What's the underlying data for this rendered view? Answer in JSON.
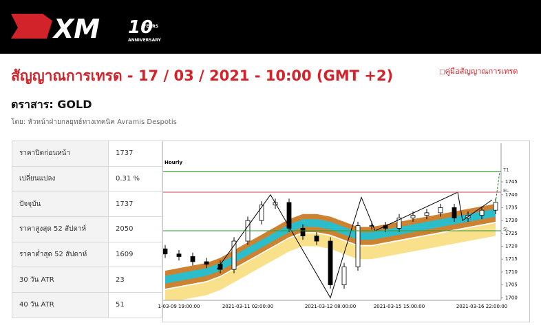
{
  "header": {
    "logo": "XM",
    "badge_number": "10",
    "badge_word": "YEARS",
    "badge_sub": "ANNIVERSARY"
  },
  "page": {
    "title": "สัญญาณการเทรด - 17 / 03 / 2021 - 10:00 (GMT +2)",
    "guide_link": "คู่มือสัญญาณการเทรด",
    "instrument": "ตราสาร: GOLD",
    "author": "โดย: หัวหน้าฝ่ายกลยุทธ์ทางเทคนิค Avramis Despotis"
  },
  "table": {
    "rows": [
      [
        "ราคาปิดก่อนหน้า",
        "1737"
      ],
      [
        "เปลี่ยนแปลง",
        "0.31 %"
      ],
      [
        "ปัจจุบัน",
        "1737"
      ],
      [
        "ราคาสูงสุด 52 สัปดาห์",
        "2050"
      ],
      [
        "ราคาต่ำสุด 52 สัปดาห์",
        "1609"
      ],
      [
        "30 วัน ATR",
        "23"
      ],
      [
        "40 วัน ATR",
        "51"
      ]
    ]
  },
  "chart_data": {
    "type": "candlestick",
    "title": "Hourly",
    "categories": [
      null,
      "1-03-09 19:00:00",
      null,
      null,
      null,
      null,
      "2021-03-11 02:00:00",
      null,
      null,
      null,
      null,
      null,
      "2021-03-12 08:00:00",
      null,
      null,
      null,
      null,
      "2021-03-15 15:00:00",
      null,
      null,
      null,
      null,
      null,
      "2021-03-16 22:00:00",
      null
    ],
    "open": [
      1719,
      1717,
      1716,
      1714,
      1713,
      1711,
      1722,
      1730,
      1736,
      1737,
      1727,
      1724,
      1722,
      1705,
      1712,
      1728,
      1728,
      1727,
      1731,
      1732,
      1733,
      1735,
      1731,
      1732,
      1734
    ],
    "high": [
      1720.5,
      1718.5,
      1717.5,
      1715.5,
      1714.5,
      1723.5,
      1731.5,
      1737.5,
      1738.5,
      1738.5,
      1728.5,
      1725.5,
      1723.5,
      1713.5,
      1729.5,
      1729.5,
      1729.5,
      1732.5,
      1733.5,
      1734.5,
      1736.5,
      1736.5,
      1733.5,
      1735.5,
      1738.5
    ],
    "low": [
      1715.5,
      1714.5,
      1712.5,
      1711.5,
      1709.5,
      1709.5,
      1720.5,
      1728.5,
      1734.5,
      1725.5,
      1722.5,
      1720.5,
      1703.5,
      1703.5,
      1710.5,
      1726.5,
      1725.5,
      1725.5,
      1729.5,
      1730.5,
      1731.5,
      1729.5,
      1729.5,
      1730.5,
      1732.5
    ],
    "close": [
      1717,
      1716,
      1714,
      1713,
      1711,
      1722,
      1730,
      1736,
      1737,
      1727,
      1724,
      1722,
      1705,
      1712,
      1728,
      1728,
      1727,
      1731,
      1732,
      1733,
      1735,
      1731,
      1732,
      1734,
      1737
    ],
    "bands": [
      {
        "color": "#f9e08b",
        "lower": [
          1698,
          1699,
          1700,
          1701,
          1703,
          1706,
          1709,
          1712,
          1715,
          1718,
          1720,
          1720,
          1719,
          1717,
          1715,
          1715,
          1716,
          1717,
          1718,
          1719,
          1720,
          1721,
          1722,
          1723,
          1724
        ],
        "upper": [
          1703,
          1704,
          1705,
          1706,
          1708,
          1711,
          1714,
          1717,
          1720,
          1723,
          1725,
          1725,
          1724,
          1722,
          1720,
          1720,
          1721,
          1722,
          1723,
          1724,
          1725,
          1726,
          1727,
          1728,
          1729
        ]
      },
      {
        "color": "#cd8232",
        "lower": [
          1703.5,
          1704.5,
          1705.5,
          1706.5,
          1708.5,
          1711.5,
          1714.5,
          1717.5,
          1720.5,
          1723.5,
          1725.5,
          1725.5,
          1724.5,
          1722.5,
          1720.5,
          1720.5,
          1721.5,
          1722.5,
          1723.5,
          1724.5,
          1725.5,
          1726.5,
          1727.5,
          1728.5,
          1729.5
        ],
        "upper": [
          1710.5,
          1711.5,
          1712.5,
          1713.5,
          1715.5,
          1718.5,
          1721.5,
          1724.5,
          1727.5,
          1730.5,
          1732.5,
          1732.5,
          1731.5,
          1729.5,
          1727.5,
          1727.5,
          1728.5,
          1729.5,
          1730.5,
          1731.5,
          1732.5,
          1733.5,
          1734.5,
          1735.5,
          1736.5
        ]
      },
      {
        "color": "#2bbdc9",
        "lower": [
          1705.5,
          1706.5,
          1707.5,
          1708.5,
          1710.5,
          1713.5,
          1716.5,
          1719.5,
          1722.5,
          1725.5,
          1727.5,
          1727.5,
          1726.5,
          1724.5,
          1722.5,
          1722.5,
          1723.5,
          1724.5,
          1725.5,
          1726.5,
          1727.5,
          1728.5,
          1729.5,
          1730.5,
          1731.5
        ],
        "upper": [
          1708.5,
          1709.5,
          1710.5,
          1711.5,
          1713.5,
          1716.5,
          1719.5,
          1722.5,
          1725.5,
          1728.5,
          1730.5,
          1730.5,
          1729.5,
          1727.5,
          1725.5,
          1725.5,
          1726.5,
          1727.5,
          1728.5,
          1729.5,
          1730.5,
          1731.5,
          1732.5,
          1733.5,
          1734.5
        ]
      }
    ],
    "zigzag": {
      "color": "#000000",
      "x": [
        3.75,
        7.65,
        12,
        14.25,
        15.25,
        21.25,
        21.6,
        23.75
      ],
      "values": [
        1711,
        1740,
        1700,
        1739,
        1726,
        1741,
        1730,
        1738
      ]
    },
    "levels": [
      {
        "name": "T1",
        "value": 1749,
        "color": "#3a9a3a"
      },
      {
        "name": "EL",
        "value": 1741,
        "color": "#d9667a"
      },
      {
        "name": "SL",
        "value": 1726,
        "color": "#3a9a3a"
      }
    ],
    "ylim": [
      1699,
      1760
    ],
    "yticks": [
      1700,
      1705,
      1710,
      1715,
      1720,
      1725,
      1730,
      1735,
      1740,
      1745
    ]
  }
}
